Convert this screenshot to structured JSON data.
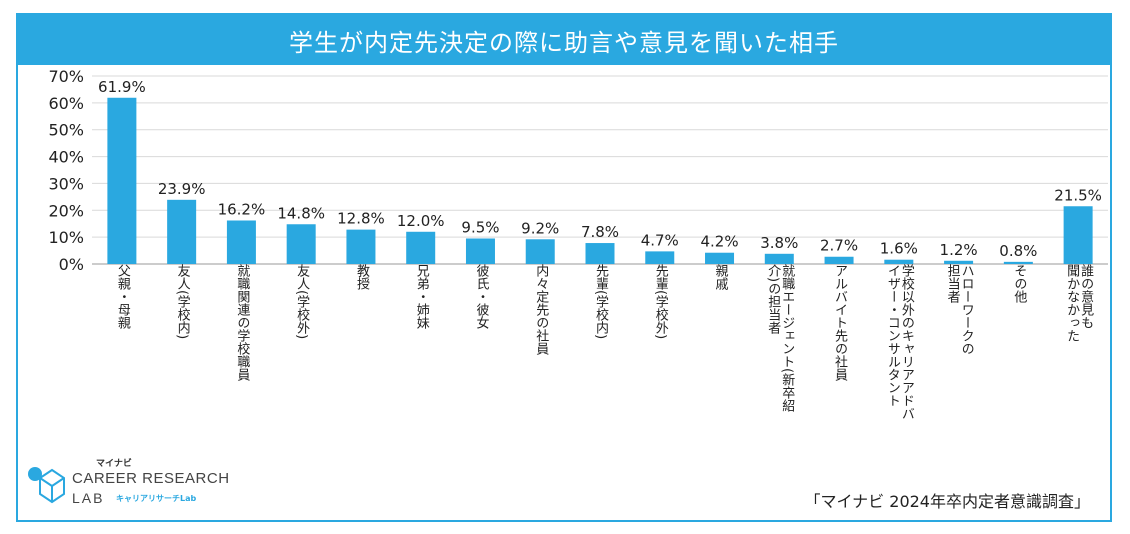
{
  "title": "学生が内定先決定の際に助言や意見を聞いた相手",
  "source": "「マイナビ 2024年卒内定者意識調査」",
  "logo": {
    "brand_jp": "マイナビ",
    "line1": "CAREER RESEARCH",
    "line2": "LAB",
    "line2_jp": "キャリアリサーチLab"
  },
  "colors": {
    "accent": "#2aa8e0",
    "bar": "#2aa8e0",
    "grid": "#d9d9d9"
  },
  "chart_data": {
    "type": "bar",
    "title": "学生が内定先決定の際に助言や意見を聞いた相手",
    "categories": [
      "父親・母親",
      "友人(学校内)",
      "就職関連の学校職員",
      "友人(学校外)",
      "教授",
      "兄弟・姉妹",
      "彼氏・彼女",
      "内々定先の社員",
      "先輩(学校内)",
      "先輩(学校外)",
      "親戚",
      "就職エージェント(新卒紹介)の担当者",
      "アルバイト先の社員",
      "学校以外のキャリアアドバイザー・コンサルタント",
      "ハローワークの担当者",
      "その他",
      "誰の意見も聞かなかった"
    ],
    "label_lines": [
      [
        "父親・母親"
      ],
      [
        "友人(学校内)"
      ],
      [
        "就職関連の学校職員"
      ],
      [
        "友人(学校外)"
      ],
      [
        "教授"
      ],
      [
        "兄弟・姉妹"
      ],
      [
        "彼氏・彼女"
      ],
      [
        "内々定先の社員"
      ],
      [
        "先輩(学校内)"
      ],
      [
        "先輩(学校外)"
      ],
      [
        "親戚"
      ],
      [
        "就職エージェント(新卒紹",
        "介)の担当者"
      ],
      [
        "アルバイト先の社員"
      ],
      [
        "学校以外のキャリアアドバ",
        "イザー・コンサルタント"
      ],
      [
        "ハローワークの",
        "担当者"
      ],
      [
        "その他"
      ],
      [
        "誰の意見も",
        "聞かなかった"
      ]
    ],
    "values": [
      61.9,
      23.9,
      16.2,
      14.8,
      12.8,
      12.0,
      9.5,
      9.2,
      7.8,
      4.7,
      4.2,
      3.8,
      2.7,
      1.6,
      1.2,
      0.8,
      21.5
    ],
    "value_labels": [
      "61.9%",
      "23.9%",
      "16.2%",
      "14.8%",
      "12.8%",
      "12.0%",
      "9.5%",
      "9.2%",
      "7.8%",
      "4.7%",
      "4.2%",
      "3.8%",
      "2.7%",
      "1.6%",
      "1.2%",
      "0.8%",
      "21.5%"
    ],
    "ylim": [
      0,
      70
    ],
    "yticks": [
      "0%",
      "10%",
      "20%",
      "30%",
      "40%",
      "50%",
      "60%",
      "70%"
    ],
    "grid": true
  }
}
